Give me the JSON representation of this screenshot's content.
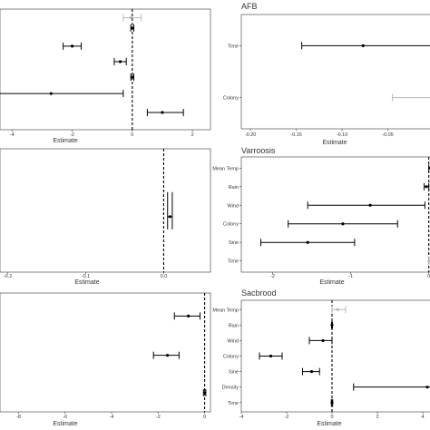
{
  "chart_data": [
    {
      "id": "p1",
      "type": "scatter",
      "title": "",
      "xlabel": "Estimate",
      "xlim": [
        -4.4,
        2.6
      ],
      "ylim": [
        0,
        7
      ],
      "ticks": [
        {
          "v": -4,
          "t": "-4"
        },
        {
          "v": -2,
          "t": "-2"
        },
        {
          "v": 0,
          "t": "0"
        },
        {
          "v": 2,
          "t": "2"
        }
      ],
      "categories": [
        "",
        "",
        "",
        "",
        "",
        ""
      ],
      "points": [
        {
          "est": -0.05,
          "lo": -0.3,
          "hi": 0.3,
          "y": 6.5,
          "faded": true
        },
        {
          "est": 0.0,
          "lo": -0.05,
          "hi": 0.05,
          "y": 5.9,
          "faded": false
        },
        {
          "est": -2.0,
          "lo": -2.3,
          "hi": -1.7,
          "y": 4.85,
          "faded": false
        },
        {
          "est": -0.4,
          "lo": -0.6,
          "hi": -0.2,
          "y": 3.95,
          "faded": false
        },
        {
          "est": 0.0,
          "lo": -0.05,
          "hi": 0.05,
          "y": 3.05,
          "faded": false
        },
        {
          "est": -2.7,
          "lo": -4.5,
          "hi": -0.3,
          "y": 2.1,
          "faded": false
        },
        {
          "est": 1.0,
          "lo": 0.5,
          "hi": 1.7,
          "y": 1.0,
          "faded": false
        }
      ]
    },
    {
      "id": "p2",
      "type": "scatter",
      "title": "AFB",
      "xlabel": "Estimate",
      "xlim": [
        -0.21,
        0.0
      ],
      "ylim": [
        0.4,
        2.6
      ],
      "ticks": [
        {
          "v": -0.2,
          "t": "-0.20"
        },
        {
          "v": -0.15,
          "t": "-0.15"
        },
        {
          "v": -0.1,
          "t": "-0.10"
        },
        {
          "v": -0.05,
          "t": "-0.05"
        }
      ],
      "categories": [
        "Colony",
        "Time"
      ],
      "points": [
        {
          "est": -0.077,
          "lo": -0.144,
          "hi": 0.01,
          "y": 2,
          "faded": false
        },
        {
          "est": 0.0,
          "lo": -0.045,
          "hi": 0.01,
          "y": 1,
          "faded": true
        }
      ]
    },
    {
      "id": "p3",
      "type": "scatter",
      "title": "",
      "xlabel": "Estimate",
      "xlim": [
        -0.21,
        0.06
      ],
      "ylim": [
        0,
        6
      ],
      "ticks": [
        {
          "v": -0.2,
          "t": "-0.2"
        },
        {
          "v": -0.1,
          "t": "-0.1"
        },
        {
          "v": 0.0,
          "t": "0.0"
        }
      ],
      "categories": [
        "",
        "",
        "",
        "",
        "",
        ""
      ],
      "points": [
        {
          "est": 0.008,
          "lo": 0.005,
          "hi": 0.011,
          "y": 2.7,
          "faded": false,
          "cap": false
        }
      ]
    },
    {
      "id": "p4",
      "type": "scatter",
      "title": "Varroosis",
      "xlabel": "Estimate",
      "xlim": [
        -2.4,
        0.05
      ],
      "ylim": [
        0.4,
        6.6
      ],
      "ticks": [
        {
          "v": -2,
          "t": "-2"
        },
        {
          "v": -1,
          "t": "-1"
        },
        {
          "v": 0,
          "t": "0"
        }
      ],
      "categories": [
        "Time",
        "Sine",
        "Colony",
        "Wind",
        "Rain",
        "Mean Temp"
      ],
      "points": [
        {
          "est": 0.02,
          "lo": 0.0,
          "hi": 0.04,
          "y": 6,
          "faded": false
        },
        {
          "est": -0.03,
          "lo": -0.06,
          "hi": 0.0,
          "y": 5,
          "faded": false
        },
        {
          "est": -0.75,
          "lo": -1.55,
          "hi": -0.05,
          "y": 4,
          "faded": false
        },
        {
          "est": -1.1,
          "lo": -1.8,
          "hi": -0.4,
          "y": 3,
          "faded": false
        },
        {
          "est": -1.55,
          "lo": -2.15,
          "hi": -0.95,
          "y": 2,
          "faded": false
        },
        {
          "est": 0.0,
          "lo": 0.0,
          "hi": 0.0,
          "y": 1,
          "faded": true
        }
      ]
    },
    {
      "id": "p5",
      "type": "scatter",
      "title": "",
      "xlabel": "Estimate",
      "xlim": [
        -8.8,
        0.25
      ],
      "ylim": [
        0,
        6.2
      ],
      "ticks": [
        {
          "v": -8,
          "t": "-8"
        },
        {
          "v": -6,
          "t": "-6"
        },
        {
          "v": -4,
          "t": "-4"
        },
        {
          "v": -2,
          "t": "-2"
        },
        {
          "v": 0,
          "t": "0"
        }
      ],
      "categories": [
        "",
        "",
        "",
        "",
        "",
        ""
      ],
      "points": [
        {
          "est": -0.7,
          "lo": -1.3,
          "hi": -0.2,
          "y": 5.0,
          "faded": false
        },
        {
          "est": -1.6,
          "lo": -2.2,
          "hi": -1.1,
          "y": 2.95,
          "faded": false
        },
        {
          "est": 0.0,
          "lo": -0.05,
          "hi": 0.05,
          "y": 1.0,
          "faded": false
        }
      ]
    },
    {
      "id": "p6",
      "type": "scatter",
      "title": "Sacbrood",
      "xlabel": "Estimate",
      "xlim": [
        -4.0,
        4.4
      ],
      "ylim": [
        0.4,
        7.6
      ],
      "ticks": [
        {
          "v": -4,
          "t": "-4"
        },
        {
          "v": -2,
          "t": "-2"
        },
        {
          "v": 0,
          "t": "0"
        },
        {
          "v": 2,
          "t": "2"
        },
        {
          "v": 4,
          "t": "4"
        }
      ],
      "categories": [
        "Time",
        "Density",
        "Sine",
        "Colony",
        "Wind",
        "Rain",
        "Mean Temp"
      ],
      "points": [
        {
          "est": 0.25,
          "lo": 0.0,
          "hi": 0.6,
          "y": 7,
          "faded": true
        },
        {
          "est": 0.0,
          "lo": -0.02,
          "hi": 0.02,
          "y": 6,
          "faded": false
        },
        {
          "est": -0.4,
          "lo": -1.0,
          "hi": 0.0,
          "y": 5,
          "faded": false
        },
        {
          "est": -2.7,
          "lo": -3.2,
          "hi": -2.2,
          "y": 4,
          "faded": false
        },
        {
          "est": -0.9,
          "lo": -1.3,
          "hi": -0.55,
          "y": 3,
          "faded": false
        },
        {
          "est": 4.2,
          "lo": 0.95,
          "hi": 4.5,
          "y": 2,
          "faded": false
        },
        {
          "est": 0.0,
          "lo": -0.03,
          "hi": 0.03,
          "y": 1,
          "faded": false
        }
      ]
    }
  ]
}
